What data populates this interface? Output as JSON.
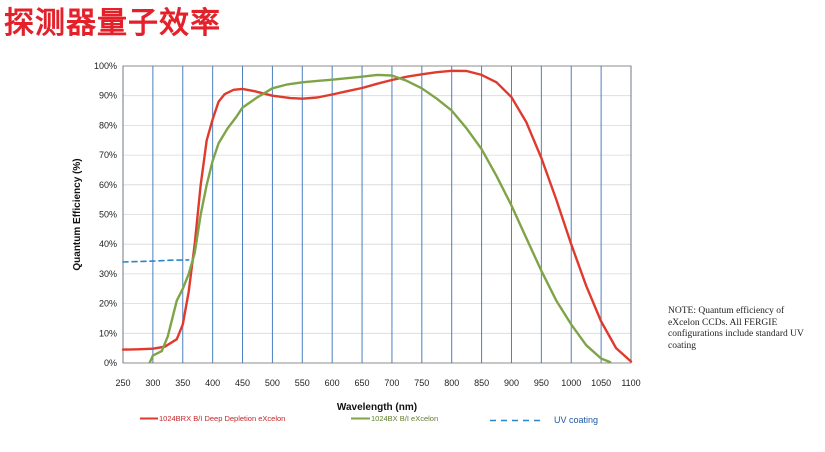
{
  "page": {
    "title": "探测器量子效率",
    "note": "NOTE: Quantum efficiency of eXcelon CCDs. All FERGIE configurations include standard UV coating"
  },
  "colors": {
    "title": "#e4202a",
    "red_series": "#e03a2e",
    "green_series": "#7fa448",
    "uv_series": "#2e86c9",
    "gridlines": "#4a7fc0"
  },
  "chart_data": {
    "type": "line",
    "xlabel": "Wavelength (nm)",
    "ylabel": "Quantum Efficiency (%)",
    "xlim": [
      250,
      1100
    ],
    "ylim": [
      0,
      100
    ],
    "x_ticks": [
      "250",
      "300",
      "350",
      "400",
      "450",
      "500",
      "550",
      "600",
      "650",
      "700",
      "750",
      "800",
      "850",
      "900",
      "950",
      "1000",
      "1050",
      "1100"
    ],
    "y_ticks": [
      "0%",
      "10%",
      "20%",
      "30%",
      "40%",
      "50%",
      "60%",
      "70%",
      "80%",
      "90%",
      "100%"
    ],
    "grid": "vertical and horizontal",
    "legend_position": "bottom",
    "series": [
      {
        "name": "1024BRX B/I Deep Depletion eXcelon",
        "color": "#e03a2e",
        "style": "solid",
        "points": [
          [
            250,
            4.5
          ],
          [
            275,
            4.6
          ],
          [
            300,
            4.8
          ],
          [
            320,
            5.5
          ],
          [
            340,
            8
          ],
          [
            350,
            13
          ],
          [
            360,
            24
          ],
          [
            370,
            40
          ],
          [
            380,
            60
          ],
          [
            390,
            75
          ],
          [
            400,
            82
          ],
          [
            410,
            88
          ],
          [
            420,
            90.5
          ],
          [
            435,
            92
          ],
          [
            450,
            92.3
          ],
          [
            470,
            91.5
          ],
          [
            500,
            90
          ],
          [
            530,
            89.2
          ],
          [
            550,
            89
          ],
          [
            575,
            89.4
          ],
          [
            600,
            90.4
          ],
          [
            625,
            91.5
          ],
          [
            650,
            92.6
          ],
          [
            675,
            94
          ],
          [
            700,
            95.3
          ],
          [
            725,
            96.4
          ],
          [
            750,
            97.2
          ],
          [
            775,
            97.9
          ],
          [
            800,
            98.4
          ],
          [
            825,
            98.3
          ],
          [
            850,
            97
          ],
          [
            875,
            94.5
          ],
          [
            900,
            89.5
          ],
          [
            925,
            81
          ],
          [
            950,
            69
          ],
          [
            975,
            55
          ],
          [
            1000,
            40
          ],
          [
            1025,
            26
          ],
          [
            1050,
            14
          ],
          [
            1075,
            5
          ],
          [
            1100,
            0.5
          ]
        ]
      },
      {
        "name": "1024BX B/I eXcelon",
        "color": "#7fa448",
        "style": "solid",
        "points": [
          [
            295,
            0.3
          ],
          [
            300,
            2.5
          ],
          [
            315,
            4
          ],
          [
            325,
            9
          ],
          [
            340,
            21
          ],
          [
            350,
            25
          ],
          [
            360,
            30
          ],
          [
            370,
            37
          ],
          [
            380,
            50
          ],
          [
            390,
            60
          ],
          [
            400,
            68
          ],
          [
            410,
            74
          ],
          [
            425,
            79
          ],
          [
            440,
            83
          ],
          [
            450,
            86
          ],
          [
            475,
            89.5
          ],
          [
            500,
            92.5
          ],
          [
            525,
            93.8
          ],
          [
            550,
            94.5
          ],
          [
            575,
            95
          ],
          [
            600,
            95.4
          ],
          [
            625,
            95.9
          ],
          [
            650,
            96.4
          ],
          [
            675,
            97
          ],
          [
            700,
            96.8
          ],
          [
            725,
            95
          ],
          [
            750,
            92.5
          ],
          [
            775,
            89
          ],
          [
            800,
            85
          ],
          [
            825,
            79
          ],
          [
            850,
            72
          ],
          [
            875,
            63
          ],
          [
            900,
            53
          ],
          [
            925,
            42
          ],
          [
            950,
            31
          ],
          [
            975,
            21
          ],
          [
            1000,
            13
          ],
          [
            1025,
            6
          ],
          [
            1050,
            1.5
          ],
          [
            1065,
            0.3
          ]
        ]
      },
      {
        "name": "UV coating",
        "color": "#2e86c9",
        "style": "dashed",
        "points": [
          [
            250,
            34
          ],
          [
            300,
            34.3
          ],
          [
            330,
            34.6
          ],
          [
            360,
            34.7
          ]
        ]
      }
    ]
  }
}
